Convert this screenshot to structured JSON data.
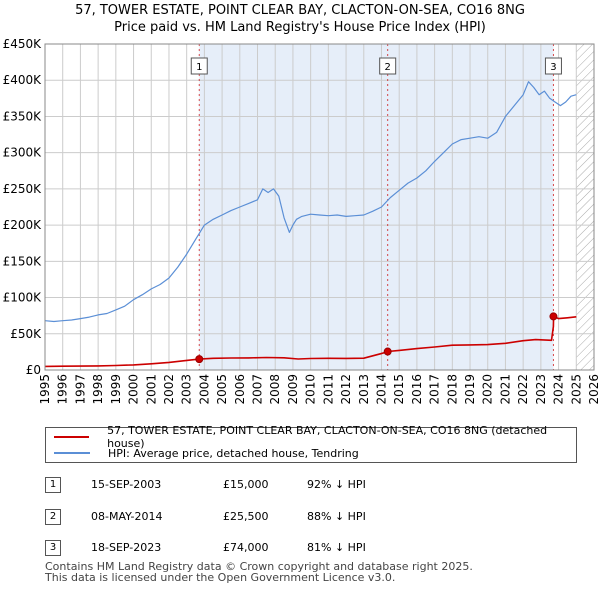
{
  "title_line1": "57, TOWER ESTATE, POINT CLEAR BAY, CLACTON-ON-SEA, CO16 8NG",
  "title_line2": "Price paid vs. HM Land Registry's House Price Index (HPI)",
  "colors": {
    "property": "#cc0000",
    "hpi": "#5b8fd6",
    "marker_fill": "#cc0000",
    "band": "#e6eef9",
    "grid": "#cccccc"
  },
  "legend": {
    "property_label": "57, TOWER ESTATE, POINT CLEAR BAY, CLACTON-ON-SEA, CO16 8NG (detached house)",
    "hpi_label": "HPI: Average price, detached house, Tendring"
  },
  "sales": [
    {
      "num": "1",
      "date": "15-SEP-2003",
      "price": "£15,000",
      "hpi": "92% ↓ HPI"
    },
    {
      "num": "2",
      "date": "08-MAY-2014",
      "price": "£25,500",
      "hpi": "88% ↓ HPI"
    },
    {
      "num": "3",
      "date": "18-SEP-2023",
      "price": "£74,000",
      "hpi": "81% ↓ HPI"
    }
  ],
  "footer": {
    "line1": "Contains HM Land Registry data © Crown copyright and database right 2025.",
    "line2": "This data is licensed under the Open Government Licence v3.0."
  },
  "chart_data": {
    "type": "line",
    "title": "57, TOWER ESTATE, POINT CLEAR BAY, CLACTON-ON-SEA, CO16 8NG — Price paid vs. HM Land Registry's House Price Index (HPI)",
    "xlim": [
      1995,
      2026
    ],
    "ylim": [
      0,
      450000
    ],
    "x_ticks": [
      1995,
      1996,
      1997,
      1998,
      1999,
      2000,
      2001,
      2002,
      2003,
      2004,
      2005,
      2006,
      2007,
      2008,
      2009,
      2010,
      2011,
      2012,
      2013,
      2014,
      2015,
      2016,
      2017,
      2018,
      2019,
      2020,
      2021,
      2022,
      2023,
      2024,
      2025,
      2026
    ],
    "y_ticks": [
      0,
      50000,
      100000,
      150000,
      200000,
      250000,
      300000,
      350000,
      400000,
      450000
    ],
    "y_tick_labels": [
      "£0",
      "£50K",
      "£100K",
      "£150K",
      "£200K",
      "£250K",
      "£300K",
      "£350K",
      "£400K",
      "£450K"
    ],
    "future_hatch_from": 2025.0,
    "sale_markers": [
      {
        "label": "1",
        "x": 2003.71,
        "y": 15000
      },
      {
        "label": "2",
        "x": 2014.35,
        "y": 25500
      },
      {
        "label": "3",
        "x": 2023.71,
        "y": 74000
      }
    ],
    "series": [
      {
        "name": "57, TOWER ESTATE, POINT CLEAR BAY, CLACTON-ON-SEA, CO16 8NG (detached house)",
        "x": [
          1995.0,
          1996.0,
          1997.0,
          1998.0,
          1999.0,
          2000.0,
          2001.0,
          2002.0,
          2003.0,
          2003.71,
          2003.72,
          2004.5,
          2005.5,
          2006.5,
          2007.5,
          2008.5,
          2009.3,
          2010.0,
          2011.0,
          2012.0,
          2013.0,
          2014.34,
          2014.35,
          2015.0,
          2016.0,
          2017.0,
          2018.0,
          2019.0,
          2020.0,
          2021.0,
          2022.0,
          2022.7,
          2023.6,
          2023.71,
          2023.72,
          2024.0,
          2024.5,
          2025.0
        ],
        "y": [
          5000,
          5200,
          5400,
          5700,
          6200,
          7100,
          8500,
          10500,
          13200,
          15000,
          15000,
          16100,
          16500,
          16700,
          17300,
          16900,
          15200,
          15900,
          16100,
          16000,
          16300,
          25000,
          25500,
          27000,
          29500,
          31800,
          34200,
          34600,
          35000,
          36800,
          40500,
          42000,
          41000,
          60000,
          74000,
          71000,
          72000,
          73500
        ]
      },
      {
        "name": "HPI: Average price, detached house, Tendring",
        "x": [
          1995.0,
          1995.5,
          1996.0,
          1996.5,
          1997.0,
          1997.5,
          1998.0,
          1998.5,
          1999.0,
          1999.5,
          2000.0,
          2000.5,
          2001.0,
          2001.5,
          2002.0,
          2002.5,
          2003.0,
          2003.5,
          2004.0,
          2004.5,
          2005.0,
          2005.5,
          2006.0,
          2006.5,
          2007.0,
          2007.3,
          2007.6,
          2007.9,
          2008.2,
          2008.5,
          2008.8,
          2009.0,
          2009.2,
          2009.5,
          2010.0,
          2010.5,
          2011.0,
          2011.5,
          2012.0,
          2012.5,
          2013.0,
          2013.5,
          2014.0,
          2014.5,
          2015.0,
          2015.5,
          2016.0,
          2016.5,
          2017.0,
          2017.5,
          2018.0,
          2018.5,
          2019.0,
          2019.5,
          2020.0,
          2020.5,
          2021.0,
          2021.5,
          2022.0,
          2022.3,
          2022.6,
          2022.9,
          2023.2,
          2023.5,
          2023.8,
          2024.1,
          2024.4,
          2024.7,
          2025.0
        ],
        "y": [
          68000,
          67000,
          68000,
          69000,
          71000,
          73000,
          76000,
          78000,
          83000,
          88000,
          97000,
          104000,
          112000,
          118000,
          127000,
          142000,
          160000,
          180000,
          200000,
          208000,
          214000,
          220000,
          225000,
          230000,
          235000,
          250000,
          245000,
          250000,
          240000,
          210000,
          190000,
          200000,
          208000,
          212000,
          215000,
          214000,
          213000,
          214000,
          212000,
          213000,
          214000,
          219000,
          225000,
          238000,
          248000,
          258000,
          265000,
          275000,
          288000,
          300000,
          312000,
          318000,
          320000,
          322000,
          320000,
          328000,
          350000,
          365000,
          380000,
          398000,
          390000,
          380000,
          385000,
          375000,
          370000,
          365000,
          370000,
          378000,
          380000
        ]
      }
    ]
  }
}
